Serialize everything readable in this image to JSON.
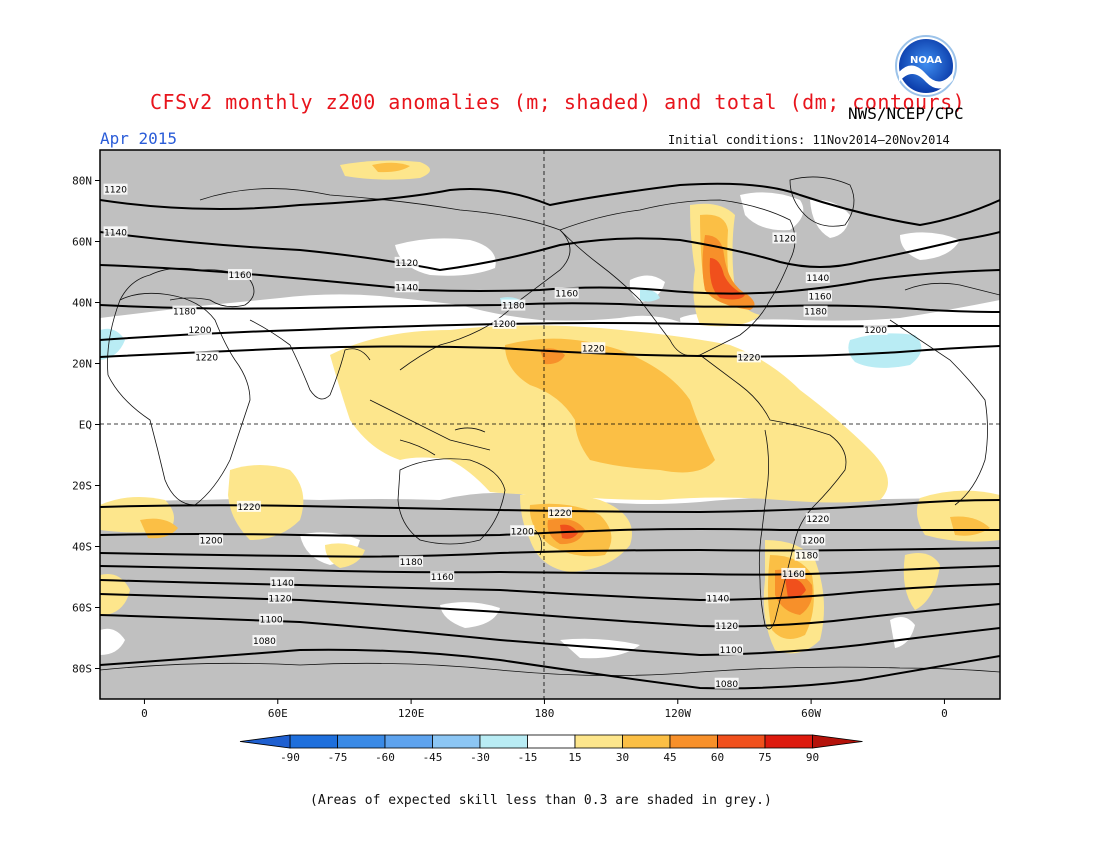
{
  "header": {
    "title": "CFSv2 monthly z200 anomalies (m; shaded) and total (dm; contours)",
    "org": "NWS/NCEP/CPC",
    "month": "Apr 2015",
    "initial_conditions": "Initial conditions: 11Nov2014–20Nov2014",
    "logo_text": "NOAA"
  },
  "footer": {
    "note": "(Areas of expected skill less than 0.3 are shaded in grey.)"
  },
  "axes": {
    "lat_labels": [
      "80N",
      "60N",
      "40N",
      "20N",
      "EQ",
      "20S",
      "40S",
      "60S",
      "80S"
    ],
    "lat_values": [
      80,
      60,
      40,
      20,
      0,
      -20,
      -40,
      -60,
      -80
    ],
    "lon_labels": [
      "0",
      "60E",
      "120E",
      "180",
      "120W",
      "60W",
      "0"
    ],
    "lon_values": [
      0,
      60,
      120,
      180,
      240,
      300,
      360
    ]
  },
  "colorbar": {
    "labels": [
      "-90",
      "-75",
      "-60",
      "-45",
      "-30",
      "-15",
      "15",
      "30",
      "45",
      "60",
      "75",
      "90"
    ],
    "colors": [
      "#1e6fdc",
      "#3a8ae6",
      "#5ea3ee",
      "#8cc6f4",
      "#b9ecf4",
      "#ffffff",
      "#fde68c",
      "#fbbf45",
      "#f7902a",
      "#f0501c",
      "#dd1a0e"
    ],
    "end_low": "#1e5fd0",
    "end_high": "#b4120a"
  },
  "colors": {
    "grey": "#c0c0c0",
    "light_yellow": "#fde68c",
    "yellow": "#fbbf45",
    "orange": "#f7902a",
    "red_orange": "#f0501c",
    "light_blue": "#b9ecf4"
  },
  "contour_labels": [
    {
      "text": "1120",
      "lon": -13,
      "lat": 77
    },
    {
      "text": "1140",
      "lon": -13,
      "lat": 63
    },
    {
      "text": "1160",
      "lon": 43,
      "lat": 49
    },
    {
      "text": "1180",
      "lon": 18,
      "lat": 37
    },
    {
      "text": "1200",
      "lon": 25,
      "lat": 31
    },
    {
      "text": "1220",
      "lon": 28,
      "lat": 22
    },
    {
      "text": "1120",
      "lon": 118,
      "lat": 53
    },
    {
      "text": "1140",
      "lon": 118,
      "lat": 45
    },
    {
      "text": "1180",
      "lon": 166,
      "lat": 39
    },
    {
      "text": "1160",
      "lon": 190,
      "lat": 43
    },
    {
      "text": "1200",
      "lon": 162,
      "lat": 33
    },
    {
      "text": "1220",
      "lon": 202,
      "lat": 25
    },
    {
      "text": "1120",
      "lon": 288,
      "lat": 61
    },
    {
      "text": "1140",
      "lon": 303,
      "lat": 48
    },
    {
      "text": "1160",
      "lon": 304,
      "lat": 42
    },
    {
      "text": "1180",
      "lon": 302,
      "lat": 37
    },
    {
      "text": "1200",
      "lon": 329,
      "lat": 31
    },
    {
      "text": "1220",
      "lon": 272,
      "lat": 22
    },
    {
      "text": "1220",
      "lon": 47,
      "lat": -27
    },
    {
      "text": "1200",
      "lon": 30,
      "lat": -38
    },
    {
      "text": "1180",
      "lon": 120,
      "lat": -45
    },
    {
      "text": "1160",
      "lon": 134,
      "lat": -50
    },
    {
      "text": "1140",
      "lon": 62,
      "lat": -52
    },
    {
      "text": "1120",
      "lon": 61,
      "lat": -57
    },
    {
      "text": "1100",
      "lon": 57,
      "lat": -64
    },
    {
      "text": "1080",
      "lon": 54,
      "lat": -71
    },
    {
      "text": "1200",
      "lon": 170,
      "lat": -35
    },
    {
      "text": "1220",
      "lon": 187,
      "lat": -29
    },
    {
      "text": "1140",
      "lon": 258,
      "lat": -57
    },
    {
      "text": "1120",
      "lon": 262,
      "lat": -66
    },
    {
      "text": "1100",
      "lon": 264,
      "lat": -74
    },
    {
      "text": "1080",
      "lon": 262,
      "lat": -85
    },
    {
      "text": "1160",
      "lon": 292,
      "lat": -49
    },
    {
      "text": "1180",
      "lon": 298,
      "lat": -43
    },
    {
      "text": "1200",
      "lon": 301,
      "lat": -38
    },
    {
      "text": "1220",
      "lon": 303,
      "lat": -31
    }
  ]
}
